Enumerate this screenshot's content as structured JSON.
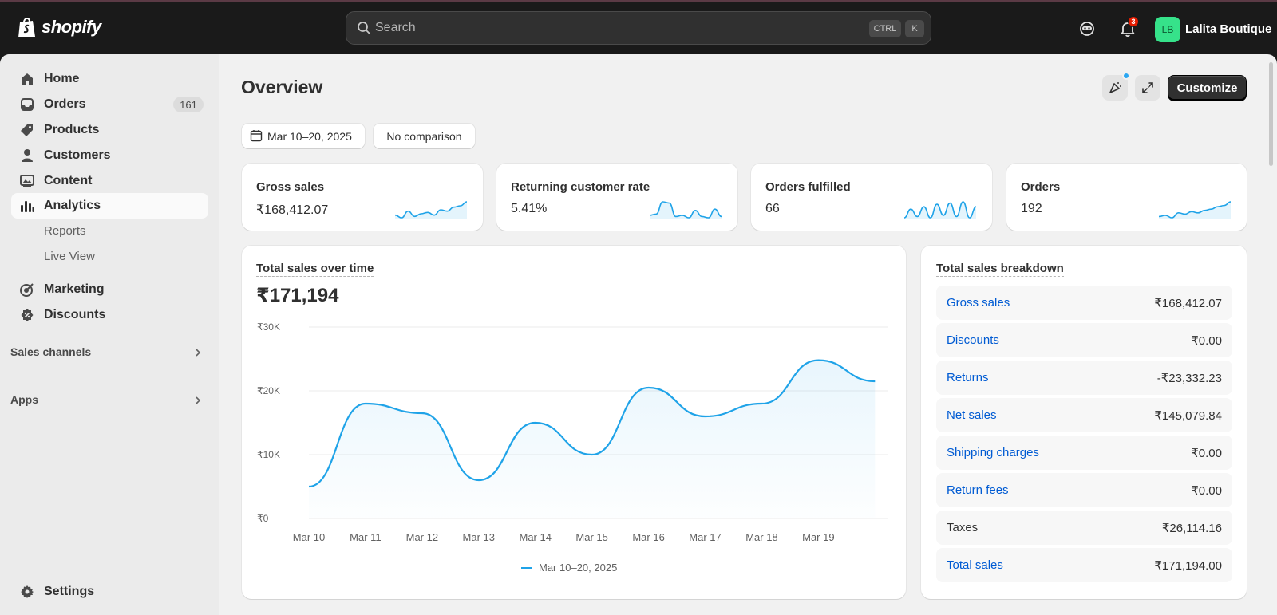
{
  "app": {
    "brand": "shopify",
    "store_name": "Lalita Boutique",
    "avatar_initials": "LB",
    "notification_count": "3"
  },
  "search": {
    "placeholder": "Search",
    "shortcut_1": "CTRL",
    "shortcut_2": "K"
  },
  "sidebar": {
    "items": [
      {
        "label": "Home",
        "icon": "home-icon"
      },
      {
        "label": "Orders",
        "icon": "orders-icon",
        "count": "161"
      },
      {
        "label": "Products",
        "icon": "tag-icon"
      },
      {
        "label": "Customers",
        "icon": "person-icon"
      },
      {
        "label": "Content",
        "icon": "image-icon"
      },
      {
        "label": "Analytics",
        "icon": "bar-chart-icon"
      },
      {
        "label": "Reports"
      },
      {
        "label": "Live View"
      },
      {
        "label": "Marketing",
        "icon": "target-icon"
      },
      {
        "label": "Discounts",
        "icon": "discount-icon"
      }
    ],
    "sections": [
      "Sales channels",
      "Apps"
    ],
    "settings": "Settings"
  },
  "page": {
    "title": "Overview",
    "customize": "Customize",
    "date_range": "Mar 10–20, 2025",
    "comparison": "No comparison"
  },
  "kpis": [
    {
      "label": "Gross sales",
      "value": "₹168,412.07",
      "spark": [
        5,
        3,
        8,
        4,
        6,
        7,
        5,
        9,
        8,
        11,
        12,
        15
      ]
    },
    {
      "label": "Returning customer rate",
      "value": "5.41%",
      "spark": [
        4,
        5,
        15,
        14,
        3,
        4,
        2,
        8,
        3,
        2,
        9,
        3
      ]
    },
    {
      "label": "Orders fulfilled",
      "value": "66",
      "spark": [
        3,
        10,
        4,
        12,
        3,
        14,
        5,
        15,
        4,
        16,
        3,
        12
      ]
    },
    {
      "label": "Orders",
      "value": "192",
      "spark": [
        4,
        5,
        3,
        7,
        6,
        8,
        7,
        9,
        10,
        12,
        13,
        16
      ]
    }
  ],
  "chart_data": {
    "type": "area",
    "title": "Total sales over time",
    "total": "₹171,194",
    "categories": [
      "Mar 10",
      "Mar 11",
      "Mar 12",
      "Mar 13",
      "Mar 14",
      "Mar 15",
      "Mar 16",
      "Mar 17",
      "Mar 18",
      "Mar 19",
      "Mar 20"
    ],
    "x_tick_labels": [
      "Mar 10",
      "Mar 11",
      "Mar 12",
      "Mar 13",
      "Mar 14",
      "Mar 15",
      "Mar 16",
      "Mar 17",
      "Mar 18",
      "Mar 19"
    ],
    "series": [
      {
        "name": "Mar 10–20, 2025",
        "values": [
          5000,
          18000,
          16500,
          6000,
          15000,
          10000,
          20500,
          16000,
          18000,
          24800,
          21500
        ]
      }
    ],
    "y_ticks": [
      "₹0",
      "₹10K",
      "₹20K",
      "₹30K"
    ],
    "ylim": [
      0,
      30000
    ],
    "color": "#1fa3e8"
  },
  "breakdown": {
    "title": "Total sales breakdown",
    "rows": [
      {
        "label": "Gross sales",
        "value": "₹168,412.07",
        "link": true
      },
      {
        "label": "Discounts",
        "value": "₹0.00",
        "link": true
      },
      {
        "label": "Returns",
        "value": "-₹23,332.23",
        "link": true
      },
      {
        "label": "Net sales",
        "value": "₹145,079.84",
        "link": true
      },
      {
        "label": "Shipping charges",
        "value": "₹0.00",
        "link": true
      },
      {
        "label": "Return fees",
        "value": "₹0.00",
        "link": true
      },
      {
        "label": "Taxes",
        "value": "₹26,114.16",
        "link": false
      },
      {
        "label": "Total sales",
        "value": "₹171,194.00",
        "link": true
      }
    ]
  }
}
